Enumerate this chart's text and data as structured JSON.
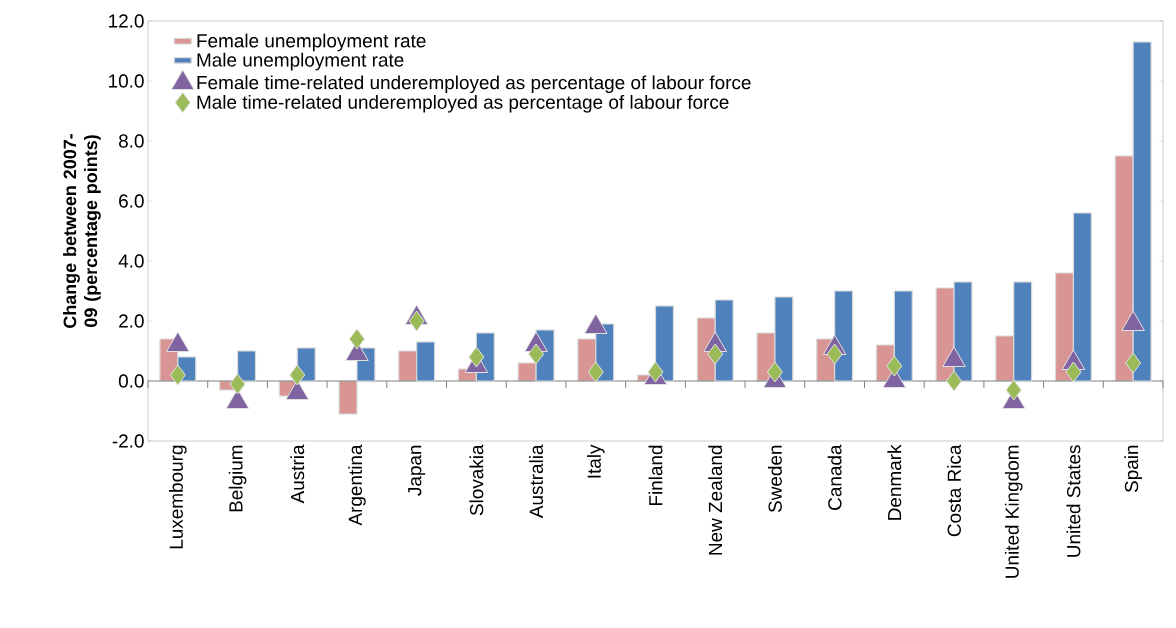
{
  "chart_data": {
    "type": "bar",
    "ylabel": "Change between 2007-09 (percentage points)",
    "categories": [
      "Luxembourg",
      "Belgium",
      "Austria",
      "Argentina",
      "Japan",
      "Slovakia",
      "Australia",
      "Italy",
      "Finland",
      "New Zealand",
      "Sweden",
      "Canada",
      "Denmark",
      "Costa Rica",
      "United Kingdom",
      "United States",
      "Spain"
    ],
    "series": [
      {
        "name": "Female unemployment rate",
        "type": "bar",
        "color": "#d99594",
        "values": [
          1.4,
          -0.3,
          -0.5,
          -1.1,
          1.0,
          0.4,
          0.6,
          1.4,
          0.2,
          2.1,
          1.6,
          1.4,
          1.2,
          3.1,
          1.5,
          3.6,
          7.5
        ]
      },
      {
        "name": "Male unemployment rate",
        "type": "bar",
        "color": "#4f81bd",
        "values": [
          0.8,
          1.0,
          1.1,
          1.1,
          1.3,
          1.6,
          1.7,
          1.9,
          2.5,
          2.7,
          2.8,
          3.0,
          3.0,
          3.3,
          3.3,
          5.6,
          11.3
        ]
      },
      {
        "name": "Female time-related underemployed as percentage of labour force",
        "type": "scatter",
        "marker": "triangle",
        "color": "#8064a2",
        "values": [
          1.2,
          -0.7,
          -0.4,
          0.9,
          2.1,
          0.5,
          1.2,
          1.8,
          0.1,
          1.2,
          0.0,
          1.1,
          0.0,
          0.7,
          -0.7,
          0.6,
          1.9
        ]
      },
      {
        "name": "Male time-related underemployed as percentage of labour force",
        "type": "scatter",
        "marker": "diamond",
        "color": "#9bbb59",
        "values": [
          0.2,
          -0.1,
          0.2,
          1.4,
          2.0,
          0.8,
          0.9,
          0.3,
          0.3,
          0.9,
          0.3,
          0.9,
          0.5,
          0.0,
          -0.3,
          0.3,
          0.6
        ]
      }
    ],
    "ylim": [
      -2,
      12
    ],
    "yticks": [
      {
        "value": -2,
        "label": "-2.0"
      },
      {
        "value": 0,
        "label": "0.0"
      },
      {
        "value": 2,
        "label": "2.0"
      },
      {
        "value": 4,
        "label": "4.0"
      },
      {
        "value": 6,
        "label": "6.0"
      },
      {
        "value": 8,
        "label": "8.0"
      },
      {
        "value": 10,
        "label": "10.0"
      },
      {
        "value": 12,
        "label": "12.0"
      }
    ],
    "legend": "top left"
  }
}
